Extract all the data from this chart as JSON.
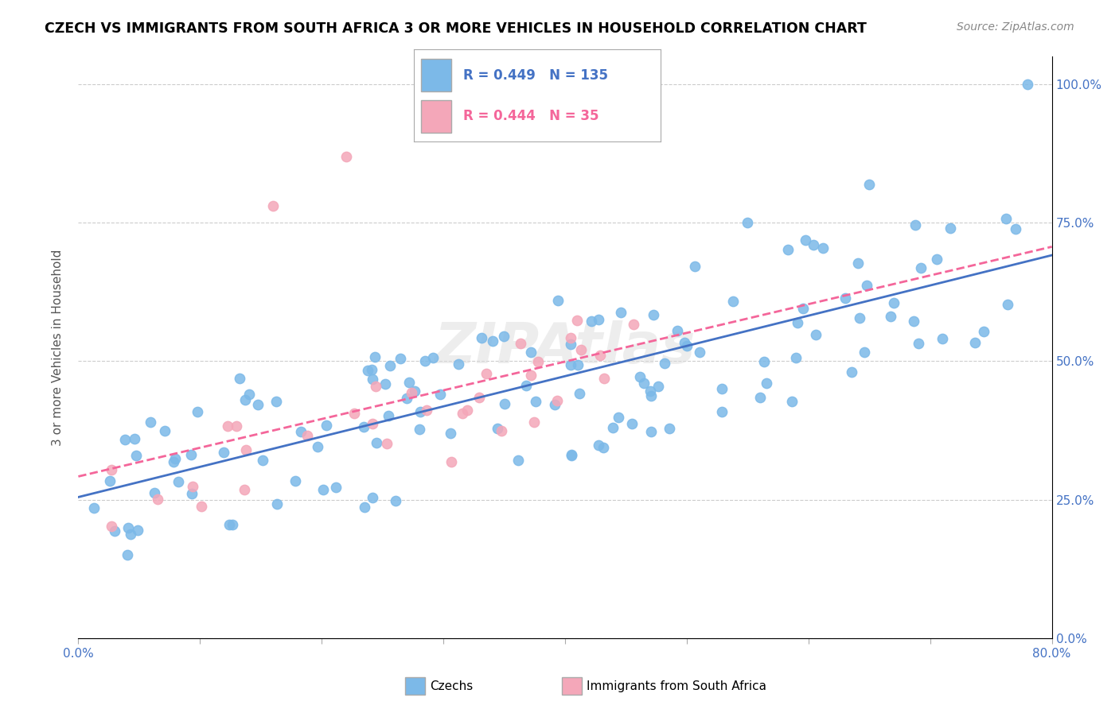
{
  "title": "CZECH VS IMMIGRANTS FROM SOUTH AFRICA 3 OR MORE VEHICLES IN HOUSEHOLD CORRELATION CHART",
  "source": "Source: ZipAtlas.com",
  "ylabel": "3 or more Vehicles in Household",
  "xmin": 0.0,
  "xmax": 0.8,
  "ymin": 0.0,
  "ymax": 1.05,
  "right_yticks": [
    0.0,
    0.25,
    0.5,
    0.75,
    1.0
  ],
  "right_yticklabels": [
    "0.0%",
    "25.0%",
    "50.0%",
    "75.0%",
    "100.0%"
  ],
  "blue_R": 0.449,
  "blue_N": 135,
  "pink_R": 0.444,
  "pink_N": 35,
  "blue_color": "#7CB9E8",
  "pink_color": "#F4A7B9",
  "blue_line_color": "#4472C4",
  "pink_line_color": "#F4669A",
  "watermark": "ZIPAtlas",
  "legend_blue_label": "Czechs",
  "legend_pink_label": "Immigrants from South Africa"
}
